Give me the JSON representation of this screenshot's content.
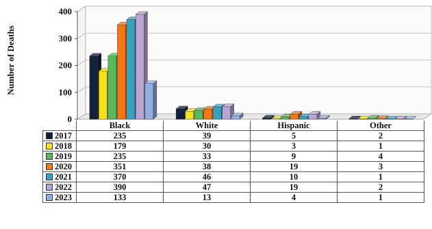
{
  "chart_data": {
    "type": "bar",
    "ylabel": "Number of Deaths",
    "ylim": [
      0,
      400
    ],
    "yticks": [
      0,
      100,
      200,
      300,
      400
    ],
    "categories": [
      "Black",
      "White",
      "Hispanic",
      "Other"
    ],
    "series": [
      {
        "name": "2017",
        "color": "#14213a",
        "values": [
          235,
          39,
          5,
          2
        ]
      },
      {
        "name": "2018",
        "color": "#f7e21a",
        "values": [
          179,
          30,
          3,
          1
        ]
      },
      {
        "name": "2019",
        "color": "#5cb85c",
        "values": [
          235,
          33,
          9,
          4
        ]
      },
      {
        "name": "2020",
        "color": "#f07818",
        "values": [
          351,
          38,
          19,
          3
        ]
      },
      {
        "name": "2021",
        "color": "#3aa0c0",
        "values": [
          370,
          46,
          10,
          1
        ]
      },
      {
        "name": "2022",
        "color": "#b9a4d6",
        "values": [
          390,
          47,
          19,
          2
        ]
      },
      {
        "name": "2023",
        "color": "#93aee0",
        "values": [
          133,
          13,
          4,
          1
        ]
      }
    ],
    "grid": true,
    "legend": "data table below chart"
  }
}
